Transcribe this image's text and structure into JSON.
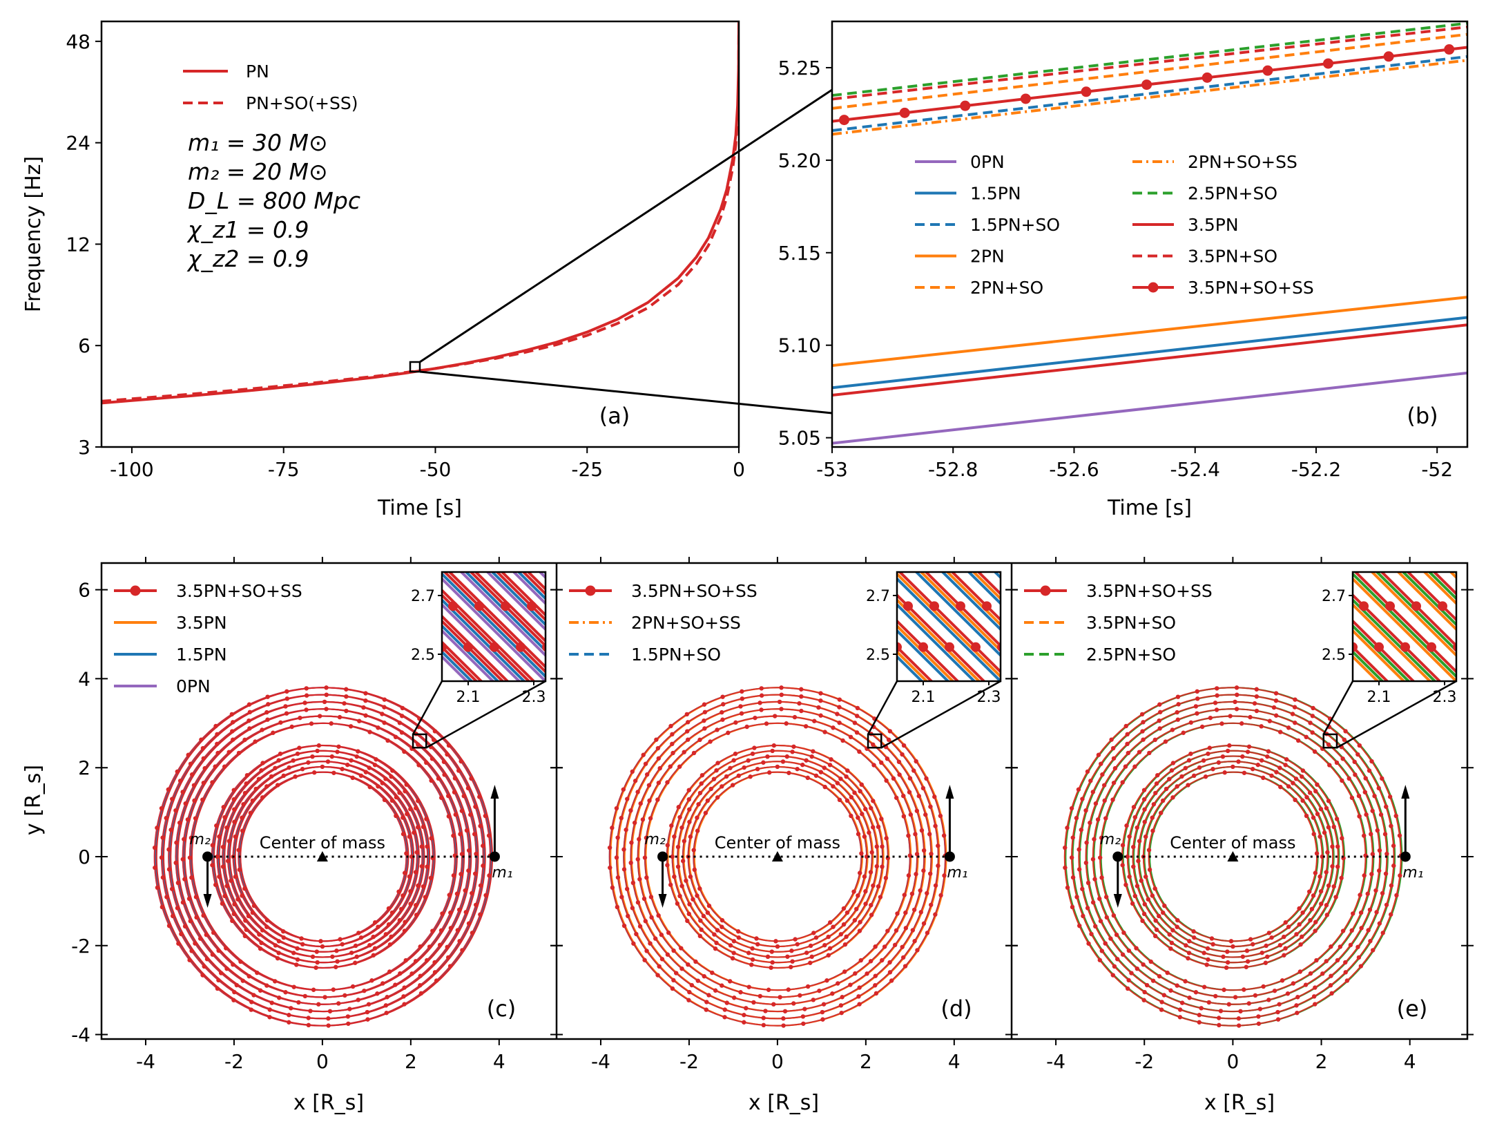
{
  "colors": {
    "0PN": "#9467bd",
    "1.5PN": "#1f77b4",
    "2PN": "#ff7f0e",
    "2.5PN": "#2ca02c",
    "3.5PN": "#d62728",
    "PN": "#d62728"
  },
  "chart_data": [
    {
      "id": "a",
      "type": "line",
      "panel_label": "(a)",
      "xlabel": "Time [s]",
      "ylabel": "Frequency [Hz]",
      "xlim": [
        -105,
        0
      ],
      "ylim": [
        3,
        55
      ],
      "yscale": "log2",
      "xticks": [
        -100,
        -75,
        -50,
        -25,
        0
      ],
      "xtick_labels": [
        "-100",
        "-75",
        "-50",
        "-25",
        "0"
      ],
      "yticks": [
        3,
        6,
        12,
        24,
        48
      ],
      "ytick_labels": [
        "3",
        "6",
        "12",
        "24",
        "48"
      ],
      "params": [
        "m₁ = 30 M⊙",
        "m₂ = 20 M⊙",
        "D_L = 800 Mpc",
        "χ_z1 = 0.9",
        "χ_z2 = 0.9"
      ],
      "legend": [
        "PN",
        "PN+SO(+SS)"
      ],
      "series": [
        {
          "name": "PN",
          "style": "solid",
          "x": [
            -105,
            -100,
            -90,
            -80,
            -70,
            -60,
            -55,
            -50,
            -45,
            -40,
            -35,
            -30,
            -25,
            -20,
            -15,
            -10,
            -7,
            -5,
            -3,
            -2,
            -1,
            -0.5,
            -0.2,
            -0.05,
            0
          ],
          "y": [
            4.05,
            4.12,
            4.26,
            4.42,
            4.61,
            4.83,
            4.97,
            5.13,
            5.32,
            5.54,
            5.81,
            6.14,
            6.58,
            7.18,
            8.05,
            9.51,
            10.99,
            12.53,
            15.21,
            17.41,
            21.5,
            25.3,
            31.0,
            40.0,
            55.0
          ]
        },
        {
          "name": "PN+SO(+SS)",
          "style": "dashed",
          "x": [
            -105,
            -100,
            -90,
            -80,
            -70,
            -60,
            -55,
            -50,
            -45,
            -40,
            -35,
            -30,
            -25,
            -20,
            -15,
            -10,
            -7,
            -5,
            -3,
            -2,
            -1,
            -0.5,
            -0.2,
            -0.05,
            0
          ],
          "y": [
            4.1,
            4.17,
            4.31,
            4.47,
            4.65,
            4.86,
            4.99,
            5.13,
            5.3,
            5.5,
            5.74,
            6.04,
            6.43,
            6.98,
            7.76,
            9.1,
            10.48,
            11.9,
            14.4,
            16.5,
            20.2,
            23.7,
            29.0,
            37.5,
            55.0
          ]
        }
      ],
      "zoom_box": {
        "x": [
          -53.0,
          -51.8
        ],
        "y": [
          5.045,
          5.275
        ]
      }
    },
    {
      "id": "b",
      "type": "line",
      "panel_label": "(b)",
      "xlabel": "Time [s]",
      "xlim": [
        -53,
        -51.95
      ],
      "ylim": [
        5.045,
        5.275
      ],
      "xticks": [
        -53,
        -52.8,
        -52.6,
        -52.4,
        -52.2,
        -52
      ],
      "xtick_labels": [
        "-53",
        "-52.8",
        "-52.6",
        "-52.4",
        "-52.2",
        "-52"
      ],
      "yticks": [
        5.05,
        5.1,
        5.15,
        5.2,
        5.25
      ],
      "ytick_labels": [
        "5.05",
        "5.10",
        "5.15",
        "5.20",
        "5.25"
      ],
      "legend_columns": [
        [
          "0PN",
          "1.5PN",
          "1.5PN+SO",
          "2PN",
          "2PN+SO"
        ],
        [
          "2PN+SO+SS",
          "2.5PN+SO",
          "3.5PN",
          "3.5PN+SO",
          "3.5PN+SO+SS"
        ]
      ],
      "series": [
        {
          "name": "0PN",
          "color_key": "0PN",
          "style": "solid",
          "y0": 5.047,
          "y1": 5.085
        },
        {
          "name": "1.5PN",
          "color_key": "1.5PN",
          "style": "solid",
          "y0": 5.077,
          "y1": 5.115
        },
        {
          "name": "1.5PN+SO",
          "color_key": "1.5PN",
          "style": "dashed",
          "y0": 5.216,
          "y1": 5.256
        },
        {
          "name": "2PN",
          "color_key": "2PN",
          "style": "solid",
          "y0": 5.089,
          "y1": 5.126
        },
        {
          "name": "2PN+SO",
          "color_key": "2PN",
          "style": "dashed",
          "y0": 5.228,
          "y1": 5.268
        },
        {
          "name": "2PN+SO+SS",
          "color_key": "2PN",
          "style": "dashdot",
          "y0": 5.214,
          "y1": 5.254
        },
        {
          "name": "2.5PN+SO",
          "color_key": "2.5PN",
          "style": "dashed",
          "y0": 5.235,
          "y1": 5.274
        },
        {
          "name": "3.5PN",
          "color_key": "3.5PN",
          "style": "solid",
          "y0": 5.073,
          "y1": 5.111
        },
        {
          "name": "3.5PN+SO",
          "color_key": "3.5PN",
          "style": "dashed",
          "y0": 5.233,
          "y1": 5.272
        },
        {
          "name": "3.5PN+SO+SS",
          "color_key": "3.5PN",
          "style": "solid-marker",
          "y0": 5.221,
          "y1": 5.261
        }
      ],
      "marker_x": [
        -52.98,
        -52.88,
        -52.78,
        -52.68,
        -52.58,
        -52.48,
        -52.38,
        -52.28,
        -52.18,
        -52.08,
        -51.98
      ]
    },
    {
      "id": "c",
      "type": "line",
      "panel_label": "(c)",
      "xlabel": "x [R_s]",
      "ylabel": "y [R_s]",
      "xlim": [
        -5,
        5.3
      ],
      "ylim": [
        -4.1,
        6.6
      ],
      "xticks": [
        -4,
        -2,
        0,
        2,
        4
      ],
      "xtick_labels": [
        "-4",
        "-2",
        "0",
        "2",
        "4"
      ],
      "yticks": [
        -4,
        -2,
        0,
        2,
        4,
        6
      ],
      "ytick_labels": [
        "-4",
        "-2",
        "0",
        "2",
        "4",
        "6"
      ],
      "legend": [
        "3.5PN+SO+SS",
        "3.5PN",
        "1.5PN",
        "0PN"
      ],
      "legend_colors": [
        "3.5PN",
        "2PN",
        "1.5PN",
        "0PN"
      ],
      "legend_styles": [
        "solid-marker",
        "solid",
        "solid",
        "solid"
      ],
      "orbit_series": [
        "0PN",
        "1.5PN",
        "3.5PN"
      ],
      "orbit_radii_outer": [
        3.0,
        3.16,
        3.32,
        3.48,
        3.64,
        3.8
      ],
      "orbit_radii_inner": [
        1.9,
        2.02,
        2.14,
        2.26,
        2.38,
        2.5
      ],
      "mass_positions": {
        "m1_x": 3.9,
        "m2_x": -2.6
      },
      "labels": {
        "center": "Center of mass",
        "m1": "m₁",
        "m2": "m₂"
      },
      "inset": {
        "xticks": [
          "2.1",
          "2.3"
        ],
        "yticks": [
          "2.7",
          "2.5"
        ],
        "zoom_box": [
          2.05,
          2.45,
          2.35,
          2.75
        ]
      }
    },
    {
      "id": "d",
      "type": "line",
      "panel_label": "(d)",
      "xlabel": "x [R_s]",
      "xlim": [
        -5,
        5.3
      ],
      "ylim": [
        -4.1,
        6.6
      ],
      "xticks": [
        -4,
        -2,
        0,
        2,
        4
      ],
      "xtick_labels": [
        "-4",
        "-2",
        "0",
        "2",
        "4"
      ],
      "legend": [
        "3.5PN+SO+SS",
        "2PN+SO+SS",
        "1.5PN+SO"
      ],
      "legend_colors": [
        "3.5PN",
        "2PN",
        "1.5PN"
      ],
      "legend_styles": [
        "solid-marker",
        "dashdot",
        "dashed"
      ],
      "orbit_series": [
        "1.5PN",
        "2PN"
      ],
      "orbit_radii_outer": [
        3.0,
        3.16,
        3.32,
        3.48,
        3.64,
        3.8
      ],
      "orbit_radii_inner": [
        1.9,
        2.02,
        2.14,
        2.26,
        2.38,
        2.5
      ],
      "mass_positions": {
        "m1_x": 3.9,
        "m2_x": -2.6
      },
      "labels": {
        "center": "Center of mass",
        "m1": "m₁",
        "m2": "m₂"
      },
      "inset": {
        "xticks": [
          "2.1",
          "2.3"
        ],
        "yticks": [
          "2.7",
          "2.5"
        ],
        "zoom_box": [
          2.05,
          2.45,
          2.35,
          2.75
        ]
      }
    },
    {
      "id": "e",
      "type": "line",
      "panel_label": "(e)",
      "xlabel": "x [R_s]",
      "xlim": [
        -5,
        5.3
      ],
      "ylim": [
        -4.1,
        6.6
      ],
      "xticks": [
        -4,
        -2,
        0,
        2,
        4
      ],
      "xtick_labels": [
        "-4",
        "-2",
        "0",
        "2",
        "4"
      ],
      "legend": [
        "3.5PN+SO+SS",
        "3.5PN+SO",
        "2.5PN+SO"
      ],
      "legend_colors": [
        "3.5PN",
        "2PN",
        "2.5PN"
      ],
      "legend_styles": [
        "solid-marker",
        "dashed",
        "dashed"
      ],
      "orbit_series": [
        "2PN",
        "2.5PN"
      ],
      "orbit_radii_outer": [
        3.0,
        3.16,
        3.32,
        3.48,
        3.64,
        3.8
      ],
      "orbit_radii_inner": [
        1.9,
        2.02,
        2.14,
        2.26,
        2.38,
        2.5
      ],
      "mass_positions": {
        "m1_x": 3.9,
        "m2_x": -2.6
      },
      "labels": {
        "center": "Center of mass",
        "m1": "m₁",
        "m2": "m₂"
      },
      "inset": {
        "xticks": [
          "2.1",
          "2.3"
        ],
        "yticks": [
          "2.7",
          "2.5"
        ],
        "zoom_box": [
          2.05,
          2.45,
          2.35,
          2.75
        ]
      }
    }
  ]
}
